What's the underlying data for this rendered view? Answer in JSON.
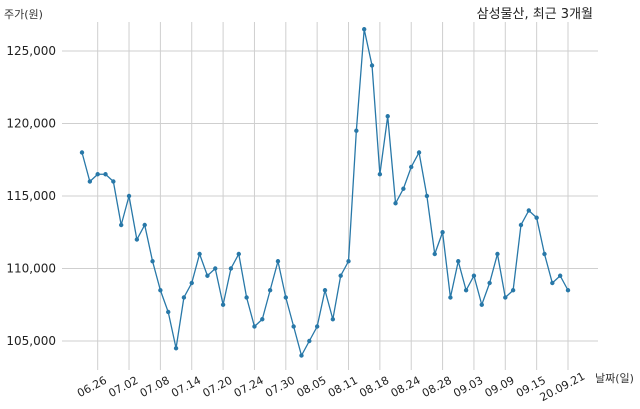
{
  "chart_data": {
    "type": "line",
    "title": "삼성물산, 최근 3개월",
    "xlabel": "날짜(일)",
    "ylabel": "주가(원)",
    "ylim": [
      103000,
      127000
    ],
    "yticks": [
      105000,
      110000,
      115000,
      120000,
      125000
    ],
    "ytick_labels": [
      "105,000",
      "110,000",
      "115,000",
      "120,000",
      "125,000"
    ],
    "xticks": [
      2,
      6,
      10,
      14,
      18,
      22,
      26,
      30,
      34,
      38,
      42,
      46,
      50,
      54,
      58,
      62
    ],
    "xtick_labels": [
      "06.26",
      "07.02",
      "07.08",
      "07.14",
      "07.20",
      "07.24",
      "07.30",
      "08.05",
      "08.11",
      "08.18",
      "08.24",
      "08.28",
      "09.03",
      "09.09",
      "09.15",
      "20.09.21"
    ],
    "grid": true,
    "color": "#2878a8",
    "series": [
      {
        "values": [
          118000,
          116000,
          116500,
          116500,
          116000,
          113000,
          115000,
          112000,
          113000,
          110500,
          108500,
          107000,
          104500,
          108000,
          109000,
          111000,
          109500,
          110000,
          107500,
          110000,
          111000,
          108000,
          106000,
          106500,
          108500,
          110500,
          108000,
          106000,
          104000,
          105000,
          106000,
          108500,
          106500,
          109500,
          110500,
          119500,
          126500,
          124000,
          116500,
          120500,
          114500,
          115500,
          117000,
          118000,
          115000,
          111000,
          112500,
          108000,
          110500,
          108500,
          109500,
          107500,
          109000,
          111000,
          108000,
          108500,
          113000,
          114000,
          113500,
          111000,
          109000,
          109500,
          108500
        ]
      }
    ]
  }
}
